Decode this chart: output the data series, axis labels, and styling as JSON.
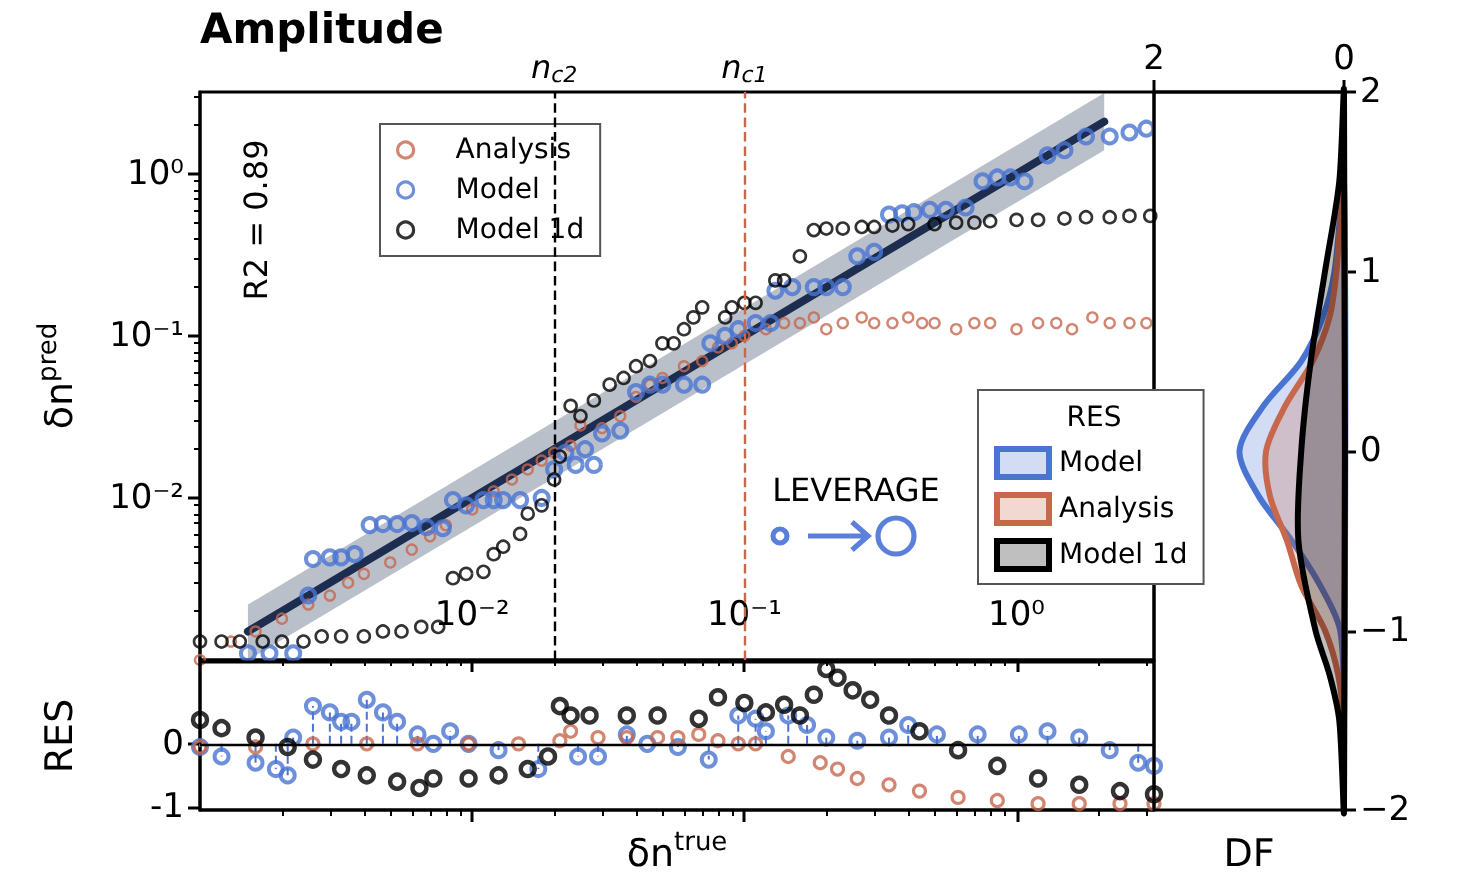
{
  "chart_data": [
    {
      "type": "scatter",
      "title": "Amplitude",
      "ylabel": "δn$^{pred}$",
      "annotations": [
        "R2 = 0.89",
        "LEVERAGE"
      ],
      "log": "xy",
      "xlim": [
        0.001,
        3.2
      ],
      "ylim": [
        0.001,
        3.2
      ],
      "xticks": [
        {
          "value": 0.01,
          "label": "10⁻²"
        },
        {
          "value": 0.1,
          "label": "10⁻¹"
        },
        {
          "value": 1,
          "label": "10⁰"
        }
      ],
      "yticks": [
        {
          "value": 0.01,
          "label": "10⁻²"
        },
        {
          "value": 0.1,
          "label": "10⁻¹"
        },
        {
          "value": 1,
          "label": "10⁰"
        }
      ],
      "legend": "top left",
      "marker": "circle",
      "ref_lines": [
        {
          "axis": "x",
          "value": 0.02,
          "label": "n$_{c2}$",
          "color": "#000000",
          "line_style": "dashed"
        },
        {
          "axis": "x",
          "value": 0.1,
          "label": "n$_{c1}$",
          "color": "#c7674c",
          "line_style": "dashed"
        }
      ],
      "series": [
        {
          "type": "line",
          "marker": "none",
          "color": "#1c2d50",
          "x": [
            0.0015,
            2.1
          ],
          "values": [
            0.0015,
            2.1
          ],
          "lower": [
            0.001,
            1.4
          ],
          "upper": [
            0.0022,
            3.15
          ]
        },
        {
          "name": "Analysis",
          "color": "#c7674c",
          "x": [
            0.001,
            0.0013,
            0.0016,
            0.002,
            0.0025,
            0.003,
            0.0035,
            0.004,
            0.005,
            0.006,
            0.007,
            0.008,
            0.01,
            0.012,
            0.014,
            0.016,
            0.018,
            0.02,
            0.023,
            0.025,
            0.03,
            0.035,
            0.04,
            0.045,
            0.05,
            0.06,
            0.07,
            0.08,
            0.09,
            0.1,
            0.12,
            0.14,
            0.16,
            0.18,
            0.2,
            0.23,
            0.27,
            0.3,
            0.35,
            0.4,
            0.45,
            0.5,
            0.6,
            0.7,
            0.8,
            1,
            1.2,
            1.4,
            1.6,
            1.9,
            2.2,
            2.6,
            3
          ],
          "values": [
            0.001,
            0.0013,
            0.0015,
            0.0018,
            0.0022,
            0.0025,
            0.003,
            0.0034,
            0.004,
            0.0048,
            0.0058,
            0.0068,
            0.0085,
            0.011,
            0.013,
            0.015,
            0.017,
            0.019,
            0.021,
            0.028,
            0.027,
            0.032,
            0.042,
            0.05,
            0.055,
            0.065,
            0.07,
            0.085,
            0.09,
            0.1,
            0.11,
            0.12,
            0.12,
            0.13,
            0.11,
            0.12,
            0.13,
            0.12,
            0.12,
            0.13,
            0.12,
            0.12,
            0.11,
            0.12,
            0.12,
            0.11,
            0.12,
            0.12,
            0.11,
            0.13,
            0.12,
            0.12,
            0.12
          ]
        },
        {
          "name": "Model",
          "color": "#4a74d2",
          "x": [
            0.0015,
            0.0018,
            0.0022,
            0.0025,
            0.0026,
            0.003,
            0.0033,
            0.0037,
            0.0042,
            0.0047,
            0.0053,
            0.006,
            0.0068,
            0.0078,
            0.0085,
            0.0095,
            0.011,
            0.012,
            0.013,
            0.015,
            0.018,
            0.02,
            0.022,
            0.024,
            0.026,
            0.028,
            0.03,
            0.035,
            0.04,
            0.045,
            0.05,
            0.06,
            0.07,
            0.075,
            0.085,
            0.095,
            0.11,
            0.125,
            0.13,
            0.15,
            0.18,
            0.2,
            0.23,
            0.26,
            0.3,
            0.34,
            0.38,
            0.42,
            0.48,
            0.55,
            0.65,
            0.75,
            0.85,
            0.95,
            1.07,
            1.3,
            1.5,
            1.8,
            2.2,
            2.6,
            3
          ],
          "values": [
            0.0011,
            0.0011,
            0.0011,
            0.0025,
            0.0042,
            0.0043,
            0.0043,
            0.0045,
            0.0068,
            0.0069,
            0.0069,
            0.007,
            0.0066,
            0.0065,
            0.0097,
            0.009,
            0.0097,
            0.0097,
            0.0097,
            0.0097,
            0.01,
            0.015,
            0.019,
            0.016,
            0.02,
            0.016,
            0.025,
            0.026,
            0.045,
            0.05,
            0.05,
            0.05,
            0.05,
            0.09,
            0.1,
            0.11,
            0.12,
            0.12,
            0.19,
            0.2,
            0.2,
            0.2,
            0.2,
            0.31,
            0.33,
            0.56,
            0.57,
            0.58,
            0.6,
            0.6,
            0.62,
            0.9,
            0.95,
            0.95,
            0.9,
            1.3,
            1.4,
            1.7,
            1.7,
            1.8,
            1.9
          ]
        },
        {
          "name": "Model 1d",
          "color": "#000000",
          "x": [
            0.001,
            0.0012,
            0.0014,
            0.0017,
            0.002,
            0.0024,
            0.0028,
            0.0033,
            0.004,
            0.0047,
            0.0055,
            0.0065,
            0.0075,
            0.0085,
            0.0095,
            0.011,
            0.012,
            0.013,
            0.015,
            0.016,
            0.018,
            0.02,
            0.021,
            0.023,
            0.025,
            0.028,
            0.032,
            0.036,
            0.04,
            0.045,
            0.05,
            0.055,
            0.06,
            0.065,
            0.07,
            0.085,
            0.09,
            0.1,
            0.11,
            0.13,
            0.14,
            0.16,
            0.18,
            0.2,
            0.23,
            0.27,
            0.3,
            0.35,
            0.4,
            0.5,
            0.6,
            0.7,
            0.8,
            1,
            1.2,
            1.5,
            1.8,
            2.2,
            2.6,
            3.1
          ],
          "values": [
            0.0013,
            0.0013,
            0.0013,
            0.0013,
            0.0013,
            0.0013,
            0.0014,
            0.0014,
            0.0014,
            0.0015,
            0.0015,
            0.0016,
            0.0016,
            0.0032,
            0.0034,
            0.0035,
            0.0045,
            0.005,
            0.006,
            0.008,
            0.009,
            0.013,
            0.018,
            0.037,
            0.032,
            0.04,
            0.05,
            0.055,
            0.065,
            0.07,
            0.09,
            0.09,
            0.11,
            0.13,
            0.15,
            0.13,
            0.15,
            0.16,
            0.16,
            0.22,
            0.22,
            0.31,
            0.45,
            0.46,
            0.46,
            0.47,
            0.47,
            0.48,
            0.49,
            0.49,
            0.5,
            0.5,
            0.51,
            0.52,
            0.52,
            0.53,
            0.54,
            0.54,
            0.55,
            0.55
          ]
        }
      ]
    },
    {
      "type": "scatter",
      "xlabel": "δn$^{true}$",
      "ylabel": "RES",
      "log": "x",
      "xlim": [
        0.001,
        3.2
      ],
      "ylim": [
        -1.05,
        1.3
      ],
      "xticks": [
        0.01,
        0.1,
        1
      ],
      "yticks": [
        0,
        -1
      ],
      "tick_labels": "y",
      "marker": "circle",
      "ref_lines": [
        {
          "axis": "y",
          "value": 0,
          "color": "#000000",
          "line_style": "solid"
        }
      ],
      "series": [
        {
          "type": "lollipop",
          "color": "#4a74d2",
          "line_style": "dashed",
          "x": [
            0.001,
            0.0012,
            0.0016,
            0.0019,
            0.0021,
            0.0022,
            0.0026,
            0.003,
            0.0033,
            0.0036,
            0.0041,
            0.0047,
            0.0053,
            0.0063,
            0.0072,
            0.0083,
            0.0097,
            0.0125,
            0.0175,
            0.0245,
            0.029,
            0.037,
            0.044,
            0.057,
            0.074,
            0.095,
            0.11,
            0.12,
            0.145,
            0.17,
            0.2,
            0.26,
            0.34,
            0.4,
            0.51,
            0.72,
            1.02,
            1.3,
            1.7,
            2.2,
            2.8,
            3.2
          ],
          "values": [
            -0.05,
            -0.2,
            -0.3,
            -0.4,
            -0.5,
            0.1,
            0.6,
            0.5,
            0.35,
            0.35,
            0.7,
            0.5,
            0.35,
            0.15,
            0,
            0.2,
            0,
            -0.1,
            -0.4,
            -0.2,
            -0.2,
            0.15,
            0,
            -0.05,
            -0.25,
            0.45,
            0.4,
            0.2,
            0.45,
            0.3,
            0.1,
            0.05,
            0.1,
            0.3,
            0.15,
            0.15,
            0.15,
            0.2,
            0.1,
            -0.1,
            -0.3,
            -0.35
          ]
        },
        {
          "color": "#c7674c",
          "x": [
            0.001,
            0.0016,
            0.0026,
            0.0041,
            0.0063,
            0.0097,
            0.0148,
            0.021,
            0.023,
            0.029,
            0.037,
            0.048,
            0.057,
            0.068,
            0.08,
            0.095,
            0.11,
            0.145,
            0.19,
            0.22,
            0.26,
            0.34,
            0.44,
            0.61,
            0.85,
            1.2,
            1.7,
            2.4,
            3.2
          ],
          "values": [
            -0.05,
            -0.05,
            0,
            0,
            0,
            0,
            0,
            0.05,
            0.2,
            0.1,
            0.1,
            0.1,
            0.1,
            0.15,
            0.05,
            0,
            0,
            -0.2,
            -0.3,
            -0.4,
            -0.55,
            -0.65,
            -0.75,
            -0.85,
            -0.9,
            -0.95,
            -0.95,
            -0.95,
            -0.95
          ]
        },
        {
          "color": "#000000",
          "x": [
            0.001,
            0.0012,
            0.0016,
            0.0021,
            0.0026,
            0.0033,
            0.0041,
            0.0053,
            0.0064,
            0.0072,
            0.0097,
            0.0125,
            0.016,
            0.019,
            0.021,
            0.023,
            0.027,
            0.037,
            0.048,
            0.068,
            0.08,
            0.1,
            0.12,
            0.14,
            0.16,
            0.18,
            0.2,
            0.22,
            0.25,
            0.29,
            0.34,
            0.44,
            0.61,
            0.85,
            1.2,
            1.7,
            2.4,
            3.2
          ],
          "values": [
            0.38,
            0.25,
            0.1,
            -0.05,
            -0.25,
            -0.4,
            -0.5,
            -0.6,
            -0.7,
            -0.55,
            -0.55,
            -0.5,
            -0.4,
            -0.2,
            0.6,
            0.45,
            0.45,
            0.45,
            0.45,
            0.4,
            0.74,
            0.65,
            0.5,
            0.62,
            0.45,
            0.78,
            1.19,
            1.05,
            0.85,
            0.7,
            0.45,
            0.2,
            -0.1,
            -0.35,
            -0.55,
            -0.65,
            -0.75,
            -0.8
          ]
        }
      ]
    },
    {
      "type": "area",
      "orientation": "horizontal",
      "xlabel": "DF",
      "legend_title": "RES",
      "legend": "left",
      "xlim": [
        2,
        0
      ],
      "xticks": [
        2,
        0
      ],
      "ylim": [
        -2,
        2
      ],
      "yticks": [
        {
          "value": -2,
          "label": "−2"
        },
        {
          "value": -1,
          "label": "−1"
        },
        0,
        1,
        2
      ],
      "series": [
        {
          "name": "Model",
          "color": "#4a74d2",
          "x": [
            1.5,
            1,
            0.75,
            0.5,
            0.25,
            0,
            -0.25,
            -0.5,
            -0.75,
            -1,
            -1.5
          ],
          "values": [
            0,
            0.1,
            0.22,
            0.45,
            0.85,
            1.1,
            0.9,
            0.55,
            0.25,
            0.04,
            0
          ]
        },
        {
          "name": "Analysis",
          "color": "#c7674c",
          "x": [
            1.5,
            1,
            0.75,
            0.5,
            0.25,
            0,
            -0.25,
            -0.5,
            -0.75,
            -1,
            -1.25,
            -1.5,
            -2
          ],
          "values": [
            0,
            0.08,
            0.15,
            0.33,
            0.62,
            0.82,
            0.78,
            0.6,
            0.45,
            0.2,
            0.06,
            0.01,
            0
          ]
        },
        {
          "name": "Model 1d",
          "color": "#000000",
          "x": [
            2,
            1.5,
            1,
            0.5,
            0,
            -0.5,
            -1,
            -1.25,
            -1.5,
            -2
          ],
          "values": [
            0,
            0.05,
            0.2,
            0.35,
            0.45,
            0.48,
            0.3,
            0.15,
            0.05,
            0
          ]
        }
      ]
    }
  ]
}
